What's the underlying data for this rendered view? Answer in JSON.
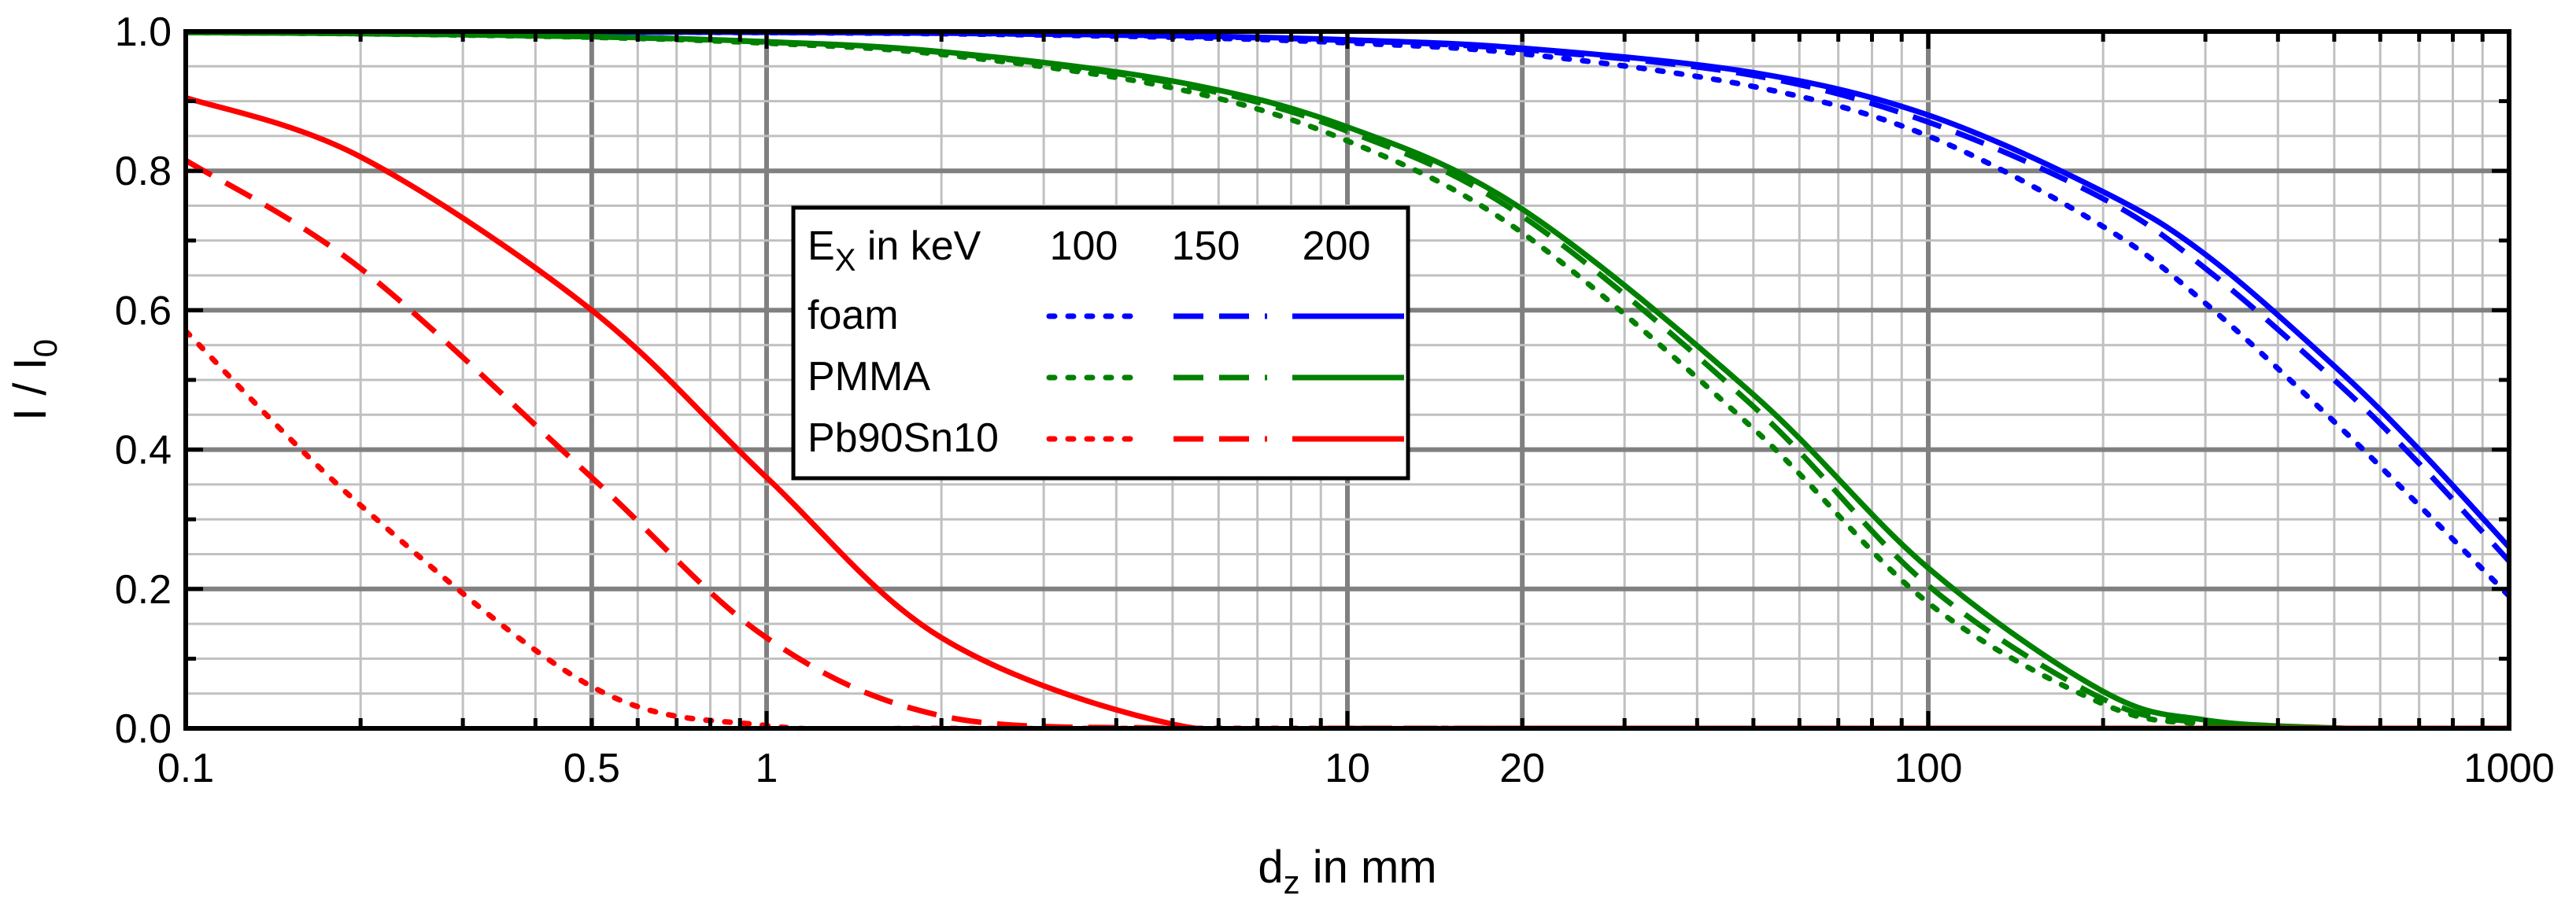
{
  "chart_data": {
    "type": "line",
    "title": "",
    "xlabel": "d",
    "xlabel_sub": "z",
    "xlabel_suffix": " in mm",
    "ylabel": "I / I",
    "ylabel_sub": "0",
    "xscale": "log",
    "xlim": [
      0.1,
      1000
    ],
    "ylim": [
      0.0,
      1.0
    ],
    "grid": true,
    "x_tick_values": [
      0.1,
      0.5,
      1,
      10,
      20,
      100,
      1000
    ],
    "x_tick_labels": [
      "0.1",
      "0.5",
      "1",
      "10",
      "20",
      "100",
      "1000"
    ],
    "y_tick_values": [
      0.0,
      0.2,
      0.4,
      0.6,
      0.8,
      1.0
    ],
    "y_tick_labels": [
      "0.0",
      "0.2",
      "0.4",
      "0.6",
      "0.8",
      "1.0"
    ],
    "legend": {
      "position": "center-left",
      "header_prefix": "E",
      "header_sub": "X",
      "header_suffix": " in keV",
      "energies": [
        "100",
        "150",
        "200"
      ],
      "line_styles": [
        "dotted",
        "dashed",
        "solid"
      ],
      "materials": [
        {
          "name": "foam",
          "color": "#0000ff"
        },
        {
          "name": "PMMA",
          "color": "#008000"
        },
        {
          "name": "Pb90Sn10",
          "color": "#ff0000"
        }
      ]
    },
    "series_x": [
      0.1,
      0.2,
      0.5,
      1,
      2,
      5,
      10,
      20,
      50,
      100,
      200,
      300,
      500,
      700,
      1000
    ],
    "series": [
      {
        "name": "foam 100 keV",
        "material": "foam",
        "energy": "100",
        "style": "dotted",
        "color": "#0000ff",
        "values": [
          0.9998,
          0.9997,
          0.9992,
          0.9983,
          0.9967,
          0.9917,
          0.9836,
          0.968,
          0.921,
          0.85,
          0.72,
          0.61,
          0.44,
          0.32,
          0.19
        ]
      },
      {
        "name": "foam 150 keV",
        "material": "foam",
        "energy": "150",
        "style": "dashed",
        "color": "#0000ff",
        "values": [
          0.9999,
          0.9998,
          0.9994,
          0.9987,
          0.9974,
          0.9935,
          0.987,
          0.974,
          0.937,
          0.87,
          0.76,
          0.66,
          0.5,
          0.38,
          0.24
        ]
      },
      {
        "name": "foam 200 keV",
        "material": "foam",
        "energy": "200",
        "style": "solid",
        "color": "#0000ff",
        "values": [
          0.9999,
          0.9998,
          0.9994,
          0.9988,
          0.9976,
          0.994,
          0.988,
          0.976,
          0.941,
          0.88,
          0.77,
          0.68,
          0.52,
          0.4,
          0.26
        ]
      },
      {
        "name": "PMMA 100 keV",
        "material": "PMMA",
        "energy": "100",
        "style": "dotted",
        "color": "#008000",
        "values": [
          0.9983,
          0.9966,
          0.9916,
          0.9832,
          0.967,
          0.919,
          0.843,
          0.711,
          0.43,
          0.18,
          0.035,
          0.006,
          0.0003,
          0.0,
          0.0
        ]
      },
      {
        "name": "PMMA 150 keV",
        "material": "PMMA",
        "energy": "150",
        "style": "dashed",
        "color": "#008000",
        "values": [
          0.9985,
          0.9969,
          0.9923,
          0.9847,
          0.97,
          0.926,
          0.857,
          0.735,
          0.462,
          0.205,
          0.042,
          0.008,
          0.0004,
          0.0,
          0.0
        ]
      },
      {
        "name": "PMMA 200 keV",
        "material": "PMMA",
        "energy": "200",
        "style": "solid",
        "color": "#008000",
        "values": [
          0.9985,
          0.997,
          0.9926,
          0.9853,
          0.971,
          0.929,
          0.863,
          0.745,
          0.479,
          0.23,
          0.053,
          0.012,
          0.0006,
          0.0,
          0.0
        ]
      },
      {
        "name": "Pb90Sn10 100 keV",
        "material": "Pb90Sn10",
        "energy": "100",
        "style": "dotted",
        "color": "#ff0000",
        "values": [
          0.57,
          0.32,
          0.06,
          0.004,
          0.0,
          0.0,
          0.0,
          0.0,
          0.0,
          0.0,
          0.0,
          0.0,
          0.0,
          0.0,
          0.0
        ]
      },
      {
        "name": "Pb90Sn10 150 keV",
        "material": "Pb90Sn10",
        "energy": "150",
        "style": "dashed",
        "color": "#ff0000",
        "values": [
          0.815,
          0.66,
          0.36,
          0.13,
          0.018,
          0.0,
          0.0,
          0.0,
          0.0,
          0.0,
          0.0,
          0.0,
          0.0,
          0.0,
          0.0
        ]
      },
      {
        "name": "Pb90Sn10 200 keV",
        "material": "Pb90Sn10",
        "energy": "200",
        "style": "solid",
        "color": "#ff0000",
        "values": [
          0.905,
          0.82,
          0.6,
          0.36,
          0.13,
          0.006,
          0.0,
          0.0,
          0.0,
          0.0,
          0.0,
          0.0,
          0.0,
          0.0,
          0.0
        ]
      }
    ]
  }
}
